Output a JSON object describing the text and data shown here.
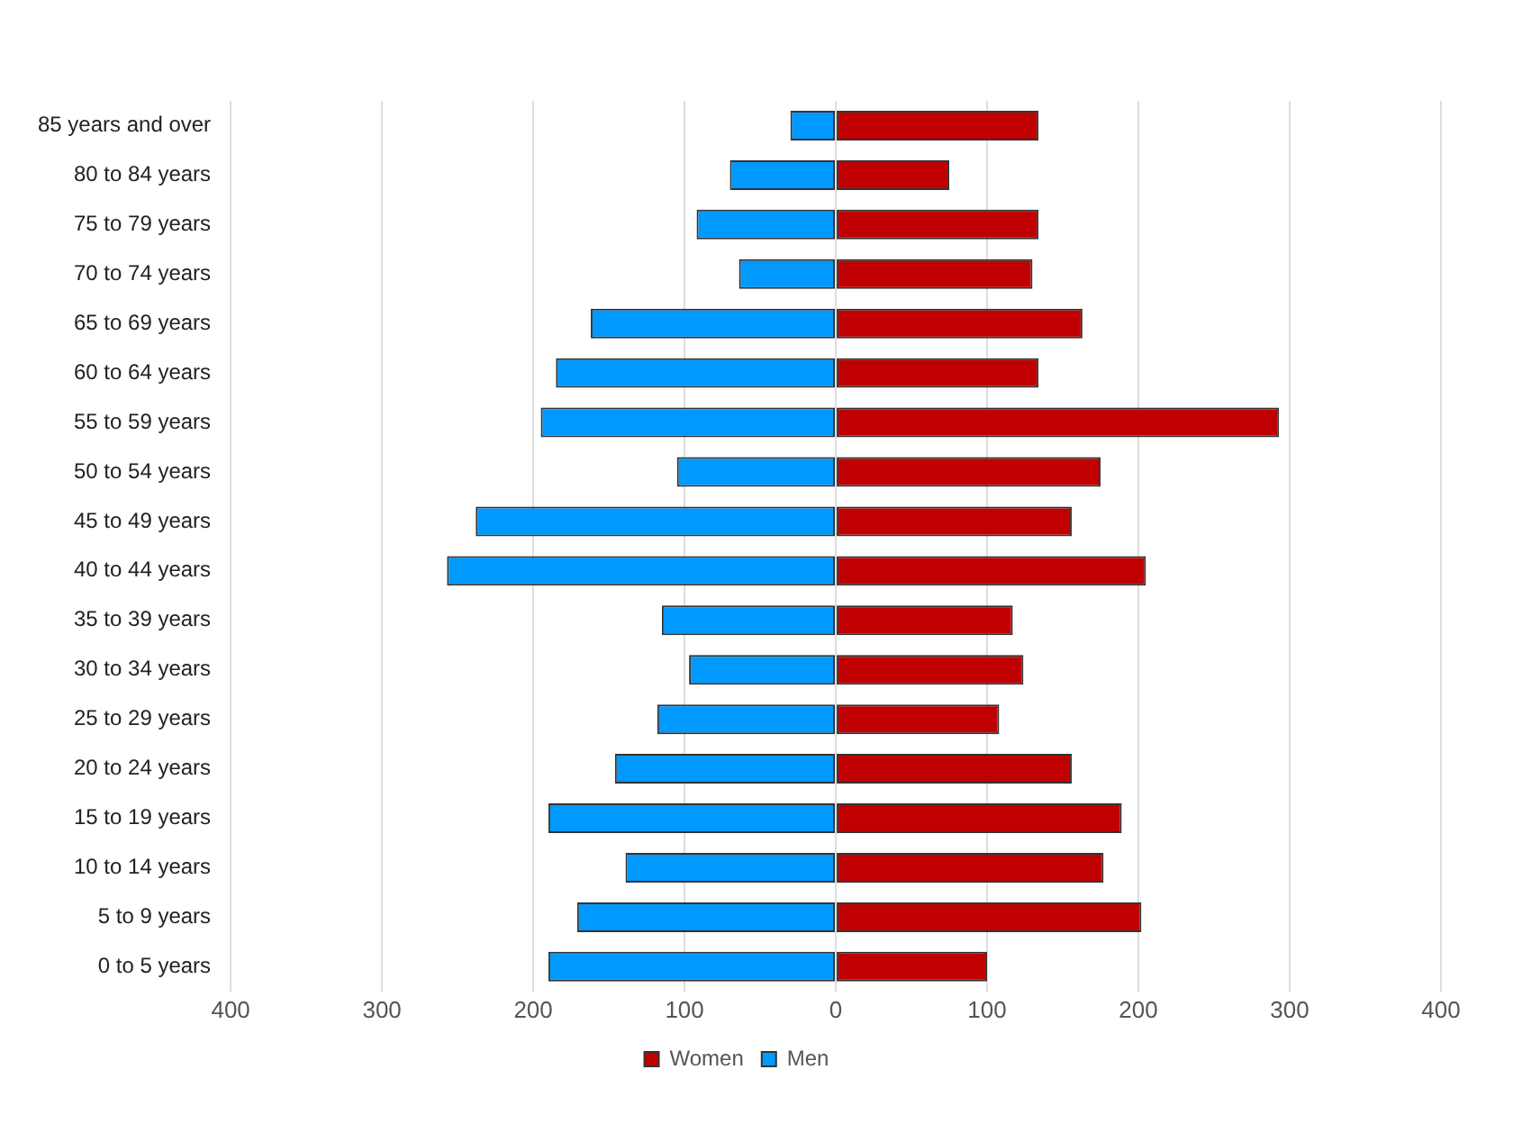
{
  "chart_data": {
    "type": "bar",
    "orientation": "horizontal",
    "stacked": true,
    "categories": [
      "85 years and over",
      "80 to 84 years",
      "75 to 79 years",
      "70 to 74 years",
      "65 to 69 years",
      "60 to 64 years",
      "55 to 59 years",
      "50 to 54 years",
      "45 to 49 years",
      "40 to 44 years",
      "35 to 39 years",
      "30 to 34 years",
      "25 to 29 years",
      "20 to 24 years",
      "15 to 19 years",
      "10 to 14 years",
      "5 to 9 years",
      "0 to 5 years"
    ],
    "series": [
      {
        "name": "Women",
        "color": "#c00000",
        "values": [
          134,
          75,
          134,
          130,
          163,
          134,
          293,
          175,
          156,
          205,
          117,
          124,
          108,
          156,
          189,
          177,
          202,
          100
        ]
      },
      {
        "name": "Men",
        "color": "#0099ff",
        "values": [
          -30,
          -70,
          -92,
          -64,
          -162,
          -185,
          -195,
          -105,
          -238,
          -257,
          -115,
          -97,
          -118,
          -146,
          -190,
          -139,
          -171,
          -190
        ]
      }
    ],
    "xlim": [
      -400,
      400
    ],
    "xticks": [
      {
        "value": -400,
        "label": "400"
      },
      {
        "value": -300,
        "label": "300"
      },
      {
        "value": -200,
        "label": "200"
      },
      {
        "value": -100,
        "label": "100"
      },
      0,
      100,
      200,
      300,
      400
    ],
    "grid": "x",
    "legend": "bottom"
  }
}
